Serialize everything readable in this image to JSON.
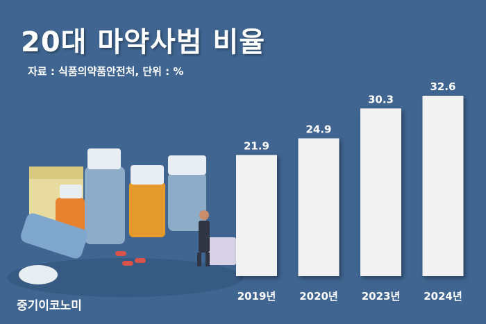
{
  "header": {
    "title": "20대 마약사범 비율",
    "source": "자료 : 식품의약품안전처, 단위 : %"
  },
  "brand": {
    "name": "중기이코노미"
  },
  "illustration": {
    "icon": "drug-pills-illustration"
  },
  "colors": {
    "background": "#3f6590",
    "bar": "#f2f2f2",
    "text": "#ffffff"
  },
  "chart_data": {
    "type": "bar",
    "title": "20대 마약사범 비율",
    "categories": [
      "2019년",
      "2020년",
      "2023년",
      "2024년"
    ],
    "values": [
      21.9,
      24.9,
      30.3,
      32.6
    ],
    "data_labels": [
      "21.9",
      "24.9",
      "30.3",
      "32.6"
    ],
    "unit": "%",
    "ylim": [
      0,
      32.6
    ],
    "grid": false,
    "legend": "none"
  }
}
